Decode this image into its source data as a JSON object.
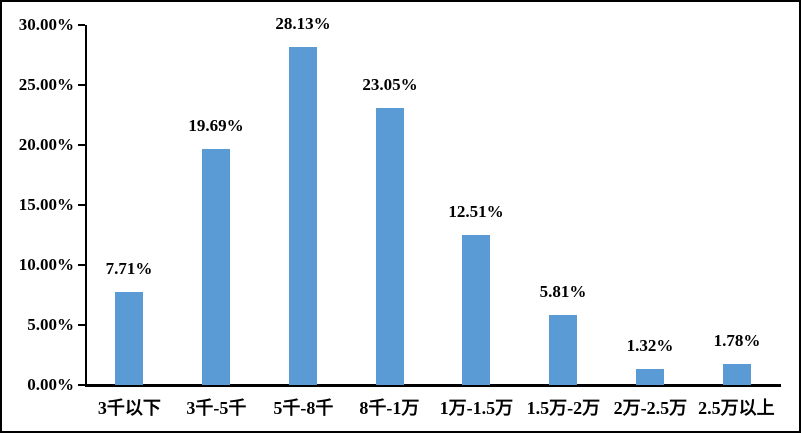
{
  "chart_data": {
    "type": "bar",
    "title": "",
    "xlabel": "",
    "ylabel": "",
    "categories": [
      "3千以下",
      "3千-5千",
      "5千-8千",
      "8千-1万",
      "1万-1.5万",
      "1.5万-2万",
      "2万-2.5万",
      "2.5万以上"
    ],
    "values": [
      7.71,
      19.69,
      28.13,
      23.05,
      12.51,
      5.81,
      1.32,
      1.78
    ],
    "value_labels": [
      "7.71%",
      "19.69%",
      "28.13%",
      "23.05%",
      "12.51%",
      "5.81%",
      "1.32%",
      "1.78%"
    ],
    "y_tick_labels": [
      "30.00%",
      "25.00%",
      "20.00%",
      "15.00%",
      "10.00%",
      "5.00%",
      "0.00%"
    ],
    "ylim": [
      0,
      30
    ],
    "grid": false,
    "legend": false,
    "bar_color": "#5B9BD5",
    "axis_color": "#000000",
    "text_color": "#000000",
    "background_color": "#FFFFFF",
    "border_color": "#000000"
  }
}
